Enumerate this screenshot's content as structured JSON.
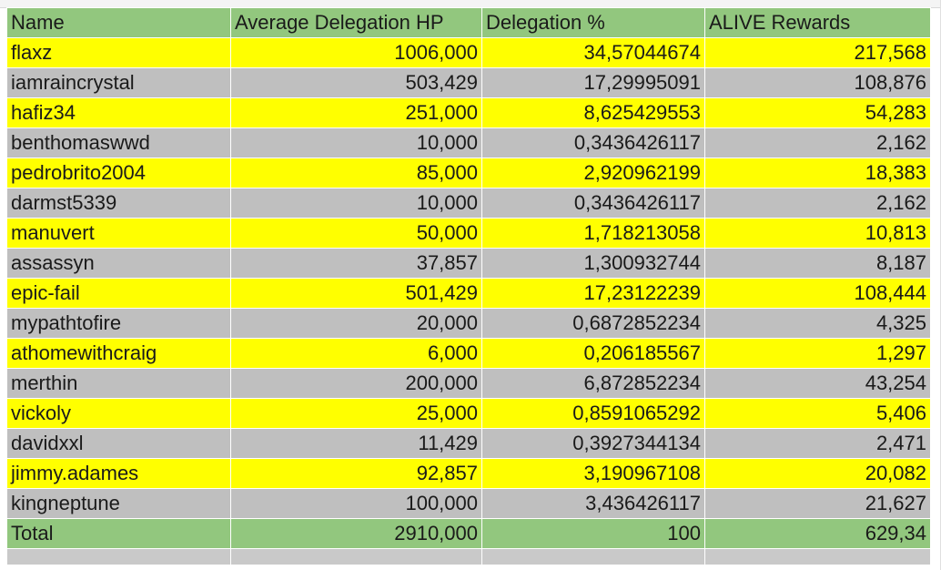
{
  "columns": [
    "Name",
    "Average Delegation HP",
    "Delegation %",
    "ALIVE Rewards"
  ],
  "rows": [
    {
      "name": "flaxz",
      "hp": "1006,000",
      "pct": "34,57044674",
      "reward": "217,568"
    },
    {
      "name": "iamraincrystal",
      "hp": "503,429",
      "pct": "17,29995091",
      "reward": "108,876"
    },
    {
      "name": "hafiz34",
      "hp": "251,000",
      "pct": "8,625429553",
      "reward": "54,283"
    },
    {
      "name": "benthomaswwd",
      "hp": "10,000",
      "pct": "0,3436426117",
      "reward": "2,162"
    },
    {
      "name": "pedrobrito2004",
      "hp": "85,000",
      "pct": "2,920962199",
      "reward": "18,383"
    },
    {
      "name": "darmst5339",
      "hp": "10,000",
      "pct": "0,3436426117",
      "reward": "2,162"
    },
    {
      "name": "manuvert",
      "hp": "50,000",
      "pct": "1,718213058",
      "reward": "10,813"
    },
    {
      "name": "assassyn",
      "hp": "37,857",
      "pct": "1,300932744",
      "reward": "8,187"
    },
    {
      "name": "epic-fail",
      "hp": "501,429",
      "pct": "17,23122239",
      "reward": "108,444"
    },
    {
      "name": "mypathtofire",
      "hp": "20,000",
      "pct": "0,6872852234",
      "reward": "4,325"
    },
    {
      "name": "athomewithcraig",
      "hp": "6,000",
      "pct": "0,206185567",
      "reward": "1,297"
    },
    {
      "name": "merthin",
      "hp": "200,000",
      "pct": "6,872852234",
      "reward": "43,254"
    },
    {
      "name": "vickoly",
      "hp": "25,000",
      "pct": "0,8591065292",
      "reward": "5,406"
    },
    {
      "name": "davidxxl",
      "hp": "11,429",
      "pct": "0,3927344134",
      "reward": "2,471"
    },
    {
      "name": "jimmy.adames",
      "hp": "92,857",
      "pct": "3,190967108",
      "reward": "20,082"
    },
    {
      "name": "kingneptune",
      "hp": "100,000",
      "pct": "3,436426117",
      "reward": "21,627"
    }
  ],
  "total": {
    "label": "Total",
    "hp": "2910,000",
    "pct": "100",
    "reward": "629,34"
  },
  "colors": {
    "header": "#92c77e",
    "row_odd": "#ffff00",
    "row_even": "#bfbfbf",
    "total": "#92c77e"
  }
}
